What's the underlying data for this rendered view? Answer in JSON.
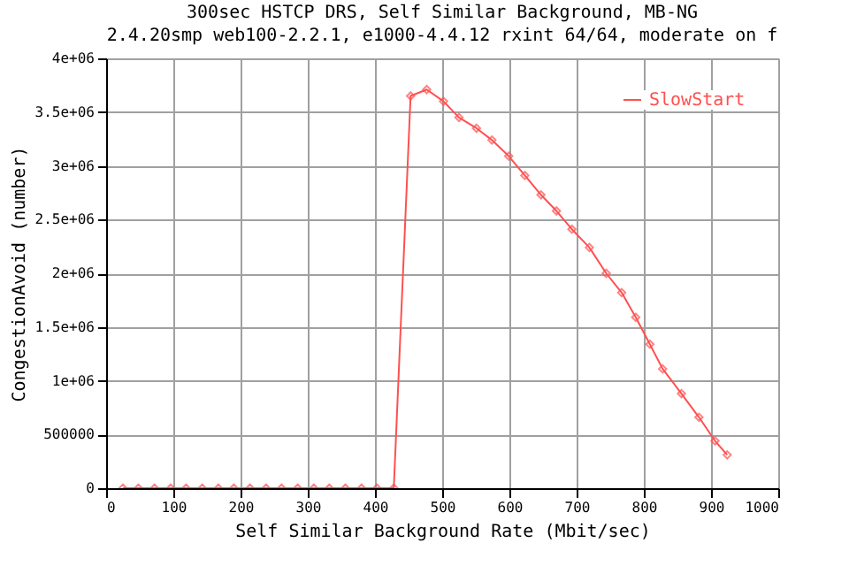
{
  "chart_data": {
    "type": "line",
    "title": "300sec  HSTCP  DRS, Self Similar Background, MB-NG",
    "subtitle": "2.4.20smp web100-2.2.1, e1000-4.4.12 rxint 64/64, moderate on f",
    "xlabel": "Self Similar Background Rate (Mbit/sec)",
    "ylabel": "CongestionAvoid (number)",
    "series": [
      {
        "name": "SlowStart",
        "color": "#ff5050",
        "x": [
          25,
          48,
          72,
          96,
          119,
          143,
          167,
          190,
          214,
          238,
          261,
          285,
          309,
          332,
          356,
          380,
          403,
          428,
          453,
          477,
          502,
          525,
          551,
          574,
          599,
          623,
          647,
          670,
          693,
          719,
          744,
          767,
          788,
          809,
          828,
          856,
          882,
          906,
          924
        ],
        "values": [
          0,
          0,
          0,
          0,
          0,
          0,
          0,
          0,
          0,
          0,
          0,
          0,
          0,
          0,
          0,
          0,
          0,
          0,
          3650000,
          3710000,
          3600000,
          3450000,
          3350000,
          3240000,
          3090000,
          2910000,
          2730000,
          2580000,
          2410000,
          2240000,
          2000000,
          1820000,
          1590000,
          1340000,
          1110000,
          880000,
          660000,
          440000,
          310000
        ]
      }
    ],
    "xlim": [
      0,
      1000
    ],
    "xticks": [
      0,
      100,
      200,
      300,
      400,
      500,
      600,
      700,
      800,
      900,
      1000
    ],
    "ylim": [
      0,
      4000000
    ],
    "yticks": [
      0,
      500000,
      {
        "value": 1000000,
        "label": "1e+06"
      },
      {
        "value": 1500000,
        "label": "1.5e+06"
      },
      {
        "value": 2000000,
        "label": "2e+06"
      },
      {
        "value": 2500000,
        "label": "2.5e+06"
      },
      {
        "value": 3000000,
        "label": "3e+06"
      },
      {
        "value": 3500000,
        "label": "3.5e+06"
      },
      {
        "value": 4000000,
        "label": "4e+06"
      }
    ],
    "grid": true,
    "legend": "top right",
    "marker": "diamond",
    "line_style": "solid"
  }
}
